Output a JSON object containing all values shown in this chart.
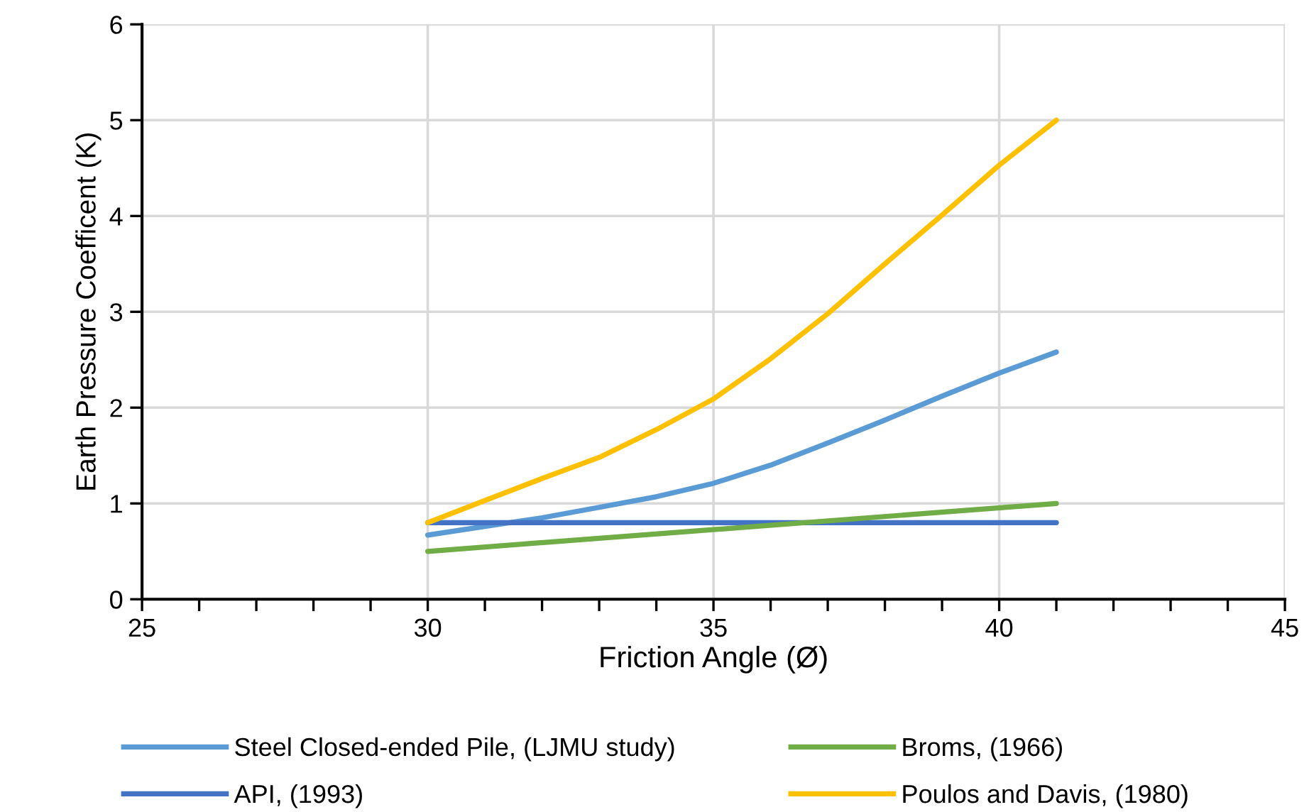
{
  "chart_data": {
    "type": "line",
    "xlabel": "Friction Angle (Ø)",
    "ylabel": "Earth Pressure Coefficent (K)",
    "xlim": [
      25,
      45
    ],
    "ylim": [
      0,
      6
    ],
    "xticks": [
      25,
      {
        "value": 26,
        "label": null
      },
      {
        "value": 27,
        "label": null
      },
      {
        "value": 28,
        "label": null
      },
      {
        "value": 29,
        "label": null
      },
      30,
      {
        "value": 31,
        "label": null
      },
      {
        "value": 32,
        "label": null
      },
      {
        "value": 33,
        "label": null
      },
      {
        "value": 34,
        "label": null
      },
      35,
      {
        "value": 36,
        "label": null
      },
      {
        "value": 37,
        "label": null
      },
      {
        "value": 38,
        "label": null
      },
      {
        "value": 39,
        "label": null
      },
      40,
      {
        "value": 41,
        "label": null
      },
      {
        "value": 42,
        "label": null
      },
      {
        "value": 43,
        "label": null
      },
      {
        "value": 44,
        "label": null
      },
      45
    ],
    "yticks": [
      0,
      1,
      2,
      3,
      4,
      5,
      6
    ],
    "grid": true,
    "legend": "bottom",
    "marker": "none",
    "line_style": "solid",
    "series": [
      {
        "name": "Steel Closed-ended Pile, (LJMU study)",
        "color": "#5b9bd5",
        "x": [
          30,
          31,
          32,
          33,
          34,
          35,
          36,
          37,
          38,
          39,
          40,
          41
        ],
        "values": [
          0.67,
          0.76,
          0.85,
          0.96,
          1.07,
          1.21,
          1.4,
          1.63,
          1.87,
          2.12,
          2.36,
          2.58
        ]
      },
      {
        "name": "API, (1993)",
        "color": "#4472c4",
        "x": [
          30,
          41
        ],
        "values": [
          0.8,
          0.8
        ]
      },
      {
        "name": "Broms, (1966)",
        "color": "#70ad47",
        "x": [
          30,
          41
        ],
        "values": [
          0.5,
          1.0
        ]
      },
      {
        "name": "Poulos and Davis, (1980)",
        "color": "#ffc000",
        "x": [
          30,
          31,
          32,
          33,
          34,
          35,
          36,
          37,
          38,
          39,
          40,
          41
        ],
        "values": [
          0.8,
          1.03,
          1.26,
          1.48,
          1.77,
          2.09,
          2.51,
          2.98,
          3.5,
          4.01,
          4.53,
          5.0
        ]
      }
    ]
  }
}
